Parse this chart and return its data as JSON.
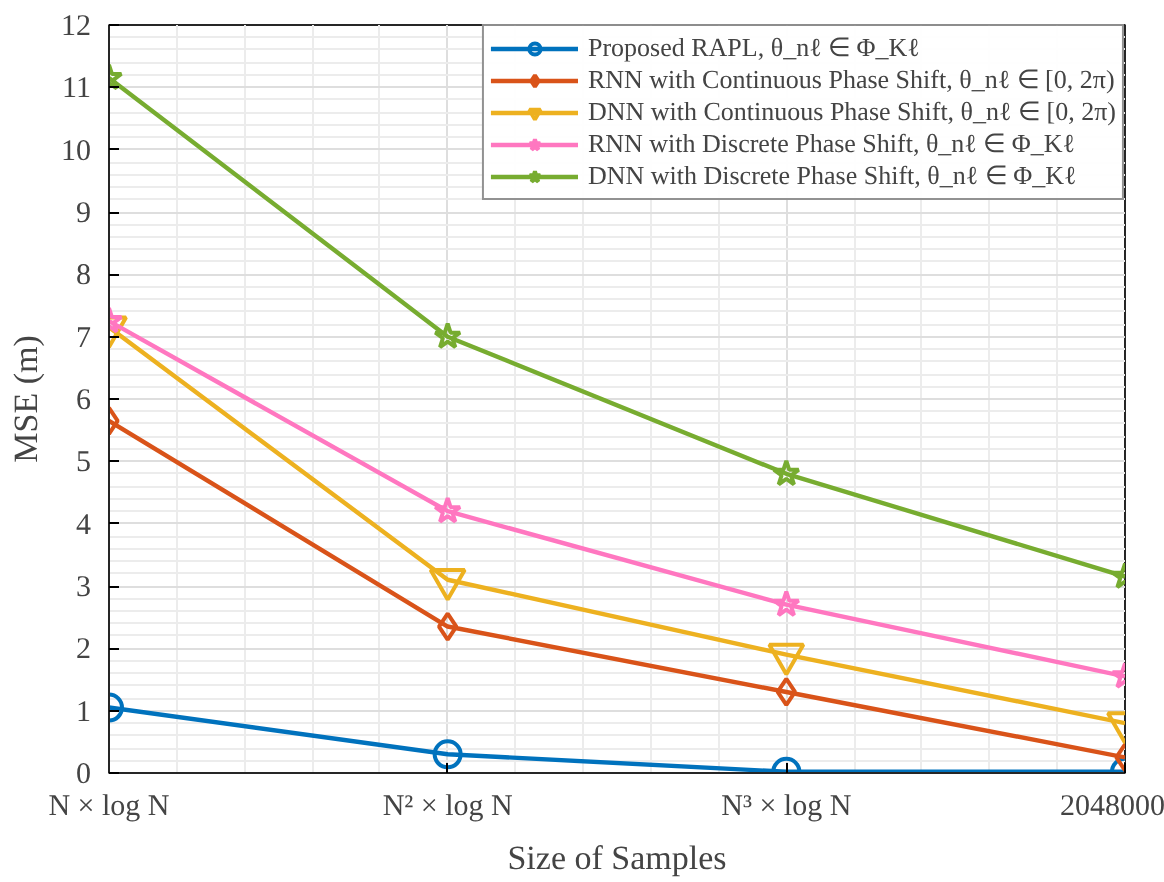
{
  "chart_data": {
    "type": "line",
    "xlabel": "Size of Samples",
    "ylabel": "MSE (m)",
    "categories": [
      "N × log N",
      "N² × log N",
      "N³ × log N",
      "2048000"
    ],
    "ylim": [
      0,
      12
    ],
    "yticks": [
      0,
      1,
      2,
      3,
      4,
      5,
      6,
      7,
      8,
      9,
      10,
      11,
      12
    ],
    "grid": true,
    "legend": "top right",
    "series": [
      {
        "name": "Proposed RAPL, θ_nℓ ∈ Φ_Kℓ",
        "color": "#0072bd",
        "marker": "circle",
        "values": [
          1.05,
          0.3,
          0.02,
          0.02
        ]
      },
      {
        "name": "RNN with Continuous Phase Shift, θ_nℓ ∈ [0, 2π)",
        "color": "#d95319",
        "marker": "diamond",
        "values": [
          5.65,
          2.35,
          1.3,
          0.25
        ]
      },
      {
        "name": "DNN with Continuous Phase Shift, θ_nℓ ∈ [0, 2π)",
        "color": "#edb120",
        "marker": "triangle",
        "values": [
          7.15,
          3.1,
          1.9,
          0.8
        ]
      },
      {
        "name": "RNN with Discrete Phase Shift, θ_nℓ ∈ Φ_Kℓ",
        "color": "#ff77c0",
        "marker": "star",
        "values": [
          7.25,
          4.2,
          2.7,
          1.55
        ]
      },
      {
        "name": "DNN with Discrete Phase Shift, θ_nℓ ∈ Φ_Kℓ",
        "color": "#77ac30",
        "marker": "star",
        "values": [
          11.15,
          7.0,
          4.8,
          3.15
        ]
      }
    ]
  }
}
